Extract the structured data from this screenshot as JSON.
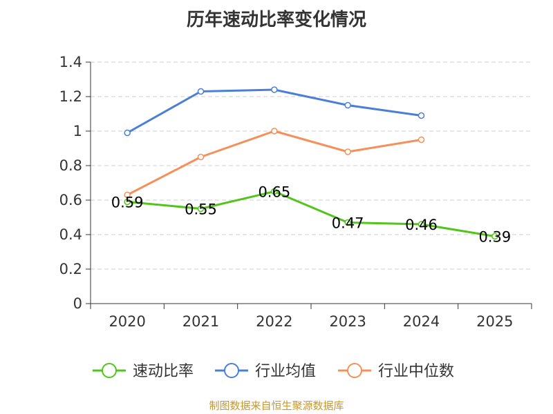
{
  "chart_data": {
    "type": "line",
    "title": "历年速动比率变化情况",
    "categories": [
      "2020",
      "2021",
      "2022",
      "2023",
      "2024",
      "2025"
    ],
    "xlabel": "",
    "ylabel": "",
    "ylim": [
      0,
      1.4
    ],
    "yticks": [
      0,
      0.2,
      0.4,
      0.6,
      0.8,
      1,
      1.2,
      1.4
    ],
    "ytick_labels": [
      "0",
      "0.2",
      "0.4",
      "0.6",
      "0.8",
      "1",
      "1.2",
      "1.4"
    ],
    "grid": "horizontal dashed",
    "legend_position": "bottom",
    "series": [
      {
        "name": "速动比率",
        "color": "#52c41a",
        "values": [
          0.59,
          0.55,
          0.65,
          0.47,
          0.46,
          0.39
        ],
        "labels": [
          "0.59",
          "0.55",
          "0.65",
          "0.47",
          "0.46",
          "0.39"
        ],
        "show_labels": true
      },
      {
        "name": "行业均值",
        "color": "#4a7fd8",
        "values": [
          0.99,
          1.23,
          1.24,
          1.15,
          1.09,
          null
        ],
        "show_labels": false
      },
      {
        "name": "行业中位数",
        "color": "#f5905a",
        "values": [
          0.63,
          0.85,
          1.0,
          0.88,
          0.95,
          null
        ],
        "show_labels": false
      }
    ]
  },
  "source": "制图数据来自恒生聚源数据库"
}
